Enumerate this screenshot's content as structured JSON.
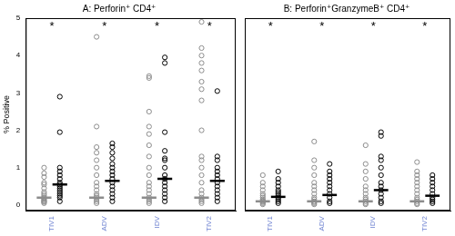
{
  "chart_data": [
    {
      "type": "scatter",
      "title": "A: Perforin⁺ CD4⁺",
      "y_label": "% Positive",
      "categories": [
        "TIV1",
        "ADV",
        "IDV",
        "TIV2"
      ],
      "ylim": [
        -0.15,
        5
      ],
      "yticks": [
        0,
        1,
        2,
        3,
        4,
        5
      ],
      "grid": false,
      "series": [
        {
          "color": "#8c8c8c",
          "marker": "circle",
          "values": [
            [
              0.05,
              0.08,
              0.1,
              0.12,
              0.15,
              0.18,
              0.2,
              0.25,
              0.3,
              0.35,
              0.45,
              0.55,
              0.6,
              0.75,
              0.85,
              1.0
            ],
            [
              0.05,
              0.1,
              0.15,
              0.2,
              0.25,
              0.3,
              0.4,
              0.5,
              0.6,
              0.8,
              1.0,
              1.2,
              1.4,
              1.55,
              2.1,
              4.5
            ],
            [
              0.05,
              0.1,
              0.15,
              0.2,
              0.3,
              0.4,
              0.5,
              0.6,
              0.8,
              1.0,
              1.3,
              1.6,
              1.9,
              2.1,
              2.5,
              3.4,
              3.45
            ],
            [
              0.05,
              0.1,
              0.15,
              0.2,
              0.3,
              0.4,
              0.6,
              0.8,
              1.0,
              1.2,
              1.3,
              2.0,
              2.8,
              3.1,
              3.3,
              3.6,
              3.8,
              4.0,
              4.2,
              4.9
            ]
          ],
          "medians": [
            0.2,
            0.2,
            0.2,
            0.2
          ]
        },
        {
          "color": "#000000",
          "marker": "circle",
          "values": [
            [
              0.1,
              0.2,
              0.25,
              0.3,
              0.35,
              0.4,
              0.45,
              0.5,
              0.55,
              0.6,
              0.7,
              0.8,
              0.9,
              1.0,
              1.95,
              2.9
            ],
            [
              0.1,
              0.2,
              0.3,
              0.4,
              0.5,
              0.6,
              0.7,
              0.8,
              0.9,
              1.0,
              1.1,
              1.25,
              1.4,
              1.55,
              1.65
            ],
            [
              0.1,
              0.2,
              0.3,
              0.4,
              0.5,
              0.6,
              0.7,
              0.8,
              1.0,
              1.2,
              1.25,
              1.45,
              1.95,
              3.8,
              3.95
            ],
            [
              0.1,
              0.2,
              0.3,
              0.4,
              0.5,
              0.6,
              0.7,
              0.8,
              0.9,
              1.0,
              1.2,
              1.3,
              3.05
            ]
          ],
          "medians": [
            0.55,
            0.65,
            0.7,
            0.65
          ]
        }
      ],
      "annotations": [
        {
          "category": "TIV1",
          "text": "*"
        },
        {
          "category": "ADV",
          "text": "*"
        },
        {
          "category": "IDV",
          "text": "*"
        },
        {
          "category": "TIV2",
          "text": "*"
        }
      ]
    },
    {
      "type": "scatter",
      "title": "B: Perforin⁺GranzymeB⁺ CD4⁺",
      "categories": [
        "TIV1",
        "ADV",
        "IDV",
        "TIV2"
      ],
      "ylim": [
        -0.15,
        5
      ],
      "yticks": [
        0,
        1,
        2,
        3,
        4,
        5
      ],
      "grid": false,
      "tick_labels": "x",
      "series": [
        {
          "color": "#8c8c8c",
          "marker": "circle",
          "values": [
            [
              0.02,
              0.05,
              0.08,
              0.1,
              0.12,
              0.15,
              0.2,
              0.25,
              0.3,
              0.4,
              0.5,
              0.6,
              0.8
            ],
            [
              0.02,
              0.05,
              0.08,
              0.1,
              0.15,
              0.2,
              0.3,
              0.4,
              0.5,
              0.6,
              0.8,
              1.0,
              1.2,
              1.7
            ],
            [
              0.02,
              0.05,
              0.1,
              0.15,
              0.2,
              0.3,
              0.4,
              0.5,
              0.7,
              0.9,
              1.1,
              1.6
            ],
            [
              0.02,
              0.05,
              0.1,
              0.15,
              0.2,
              0.3,
              0.4,
              0.5,
              0.6,
              0.7,
              0.8,
              0.9,
              1.15
            ]
          ],
          "medians": [
            0.1,
            0.1,
            0.1,
            0.1
          ]
        },
        {
          "color": "#000000",
          "marker": "circle",
          "values": [
            [
              0.05,
              0.1,
              0.15,
              0.2,
              0.25,
              0.3,
              0.35,
              0.4,
              0.5,
              0.6,
              0.7,
              0.9
            ],
            [
              0.05,
              0.1,
              0.2,
              0.3,
              0.4,
              0.5,
              0.6,
              0.7,
              0.8,
              0.9,
              1.1
            ],
            [
              0.05,
              0.1,
              0.2,
              0.3,
              0.4,
              0.5,
              0.6,
              0.8,
              1.0,
              1.2,
              1.3,
              1.85,
              1.95
            ],
            [
              0.05,
              0.1,
              0.15,
              0.2,
              0.3,
              0.4,
              0.5,
              0.6,
              0.7,
              0.8
            ]
          ],
          "medians": [
            0.22,
            0.27,
            0.4,
            0.25
          ]
        }
      ],
      "annotations": [
        {
          "category": "TIV1",
          "text": "*"
        },
        {
          "category": "ADV",
          "text": "*"
        },
        {
          "category": "IDV",
          "text": "*"
        },
        {
          "category": "TIV2",
          "text": "*"
        }
      ]
    }
  ]
}
